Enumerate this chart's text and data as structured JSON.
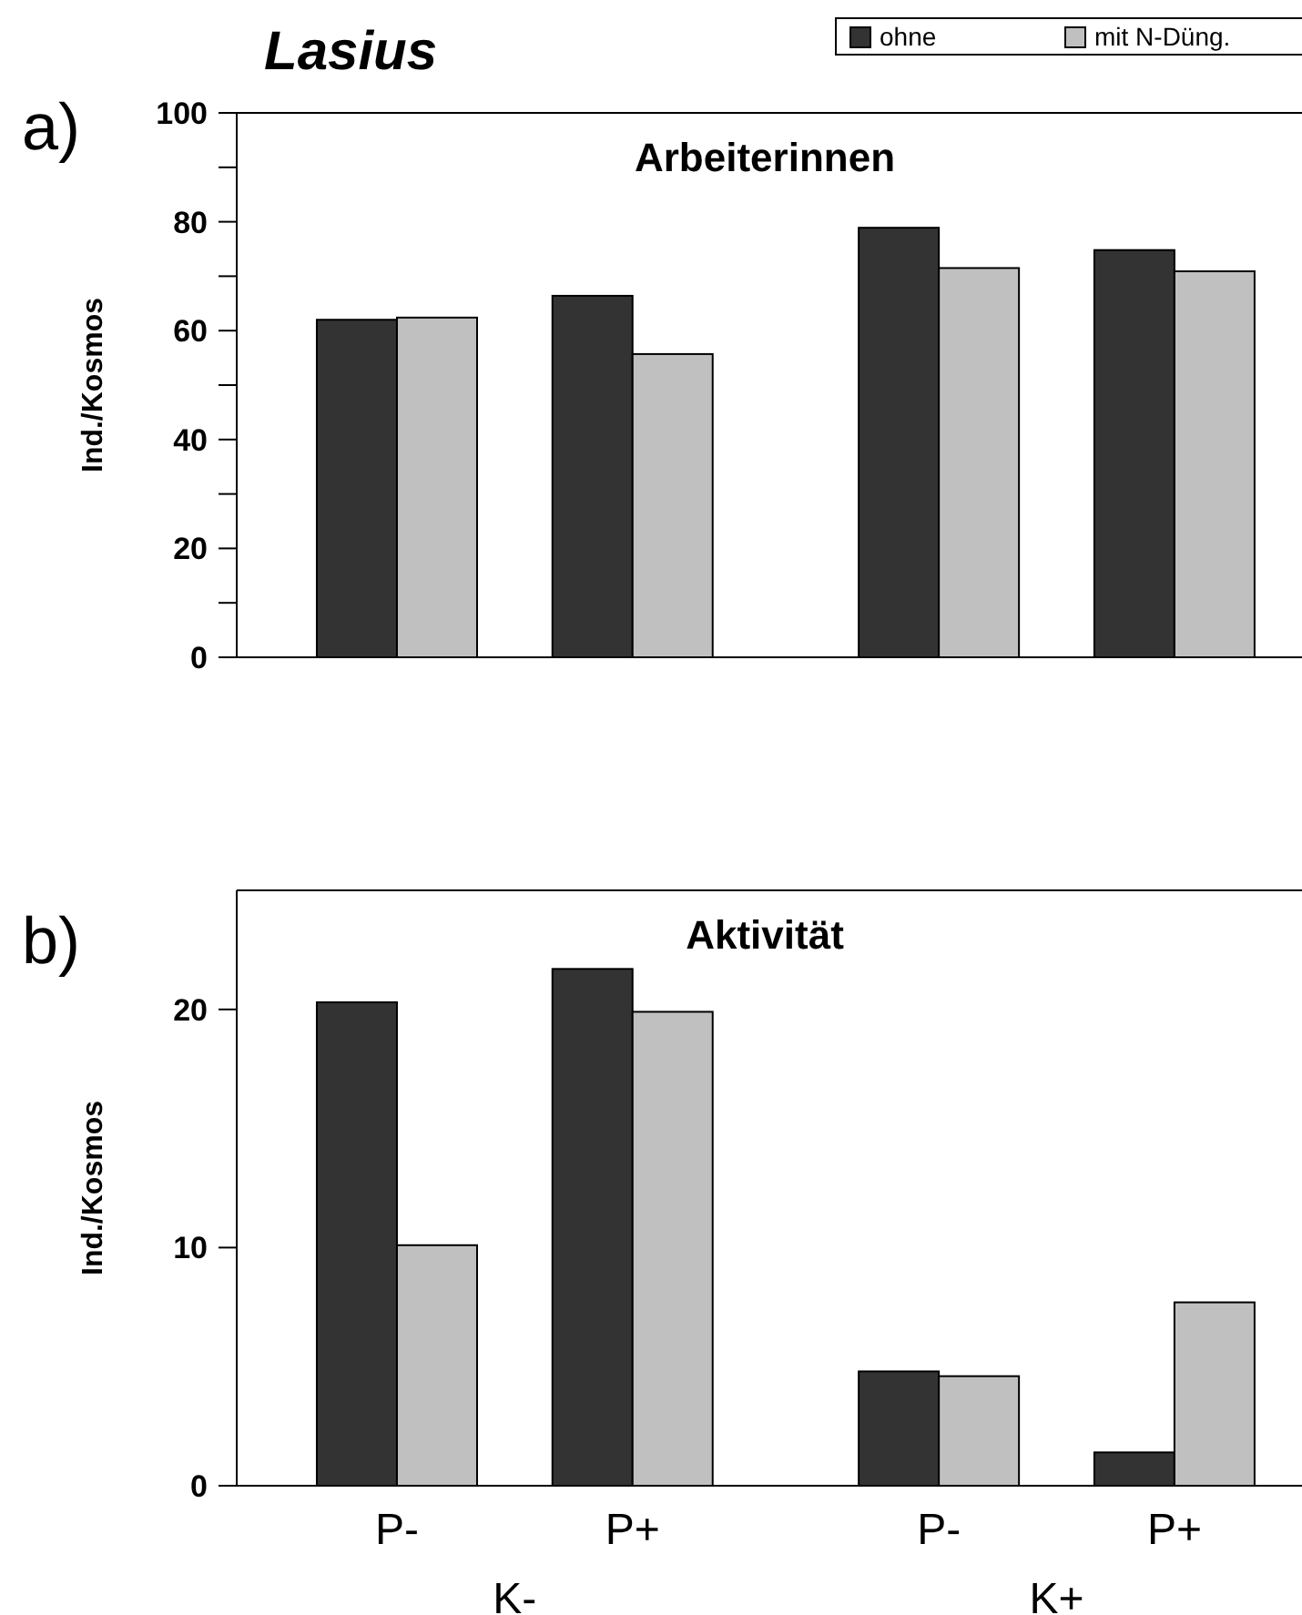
{
  "chart_data": [
    {
      "type": "bar",
      "title": "Arbeiterinnen",
      "ylabel": "Ind./Kosmos",
      "annotations": [
        "Lasius",
        "a)"
      ],
      "categories": [
        null,
        null,
        null,
        null
      ],
      "series": [
        {
          "name": "ohne",
          "color": "#333333",
          "values": [
            62.0,
            66.4,
            78.9,
            74.8
          ]
        },
        {
          "name": "mit N-Düng.",
          "color": "#c0c0c0",
          "values": [
            62.4,
            55.7,
            71.5,
            70.9
          ]
        }
      ],
      "ylim": [
        0,
        100
      ],
      "yticks": [
        0,
        {
          "value": 10,
          "label": null
        },
        20,
        {
          "value": 30,
          "label": null
        },
        40,
        {
          "value": 50,
          "label": null
        },
        60,
        {
          "value": 70,
          "label": null
        },
        80,
        {
          "value": 90,
          "label": null
        },
        100
      ],
      "legend": "top right"
    },
    {
      "type": "bar",
      "title": "Aktivität",
      "ylabel": "Ind./Kosmos",
      "annotations": [
        "b)",
        "K-",
        "K+"
      ],
      "categories": [
        "P-",
        "P+",
        "P-",
        "P+"
      ],
      "series": [
        {
          "color": "#333333",
          "values": [
            20.3,
            21.7,
            4.8,
            1.4
          ]
        },
        {
          "color": "#c0c0c0",
          "values": [
            10.1,
            19.9,
            4.6,
            7.7
          ]
        }
      ],
      "ylim": [
        0,
        25
      ],
      "yticks": [
        0,
        10,
        20
      ]
    }
  ]
}
